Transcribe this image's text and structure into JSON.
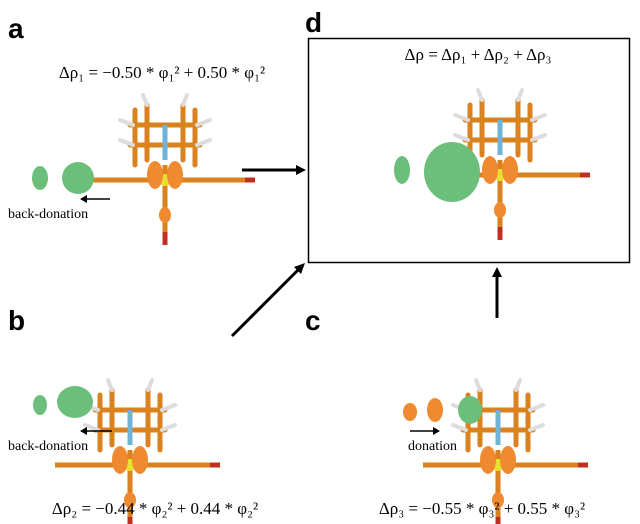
{
  "panels": [
    {
      "label": "a",
      "equation": "Δρ₁ = −0.50 * φ₁² + 0.50 * φ₁²",
      "annotation": "back-donation"
    },
    {
      "label": "b",
      "equation": "Δρ₂ = −0.44 * φ₂² + 0.44 * φ₂²",
      "annotation": "back-donation"
    },
    {
      "label": "c",
      "equation": "Δρ₃ = −0.55 * φ₃² + 0.55 * φ₃²",
      "annotation": "donation"
    },
    {
      "label": "d",
      "equation": "Δρ = Δρ₁ + Δρ₂ + Δρ₃"
    }
  ]
}
